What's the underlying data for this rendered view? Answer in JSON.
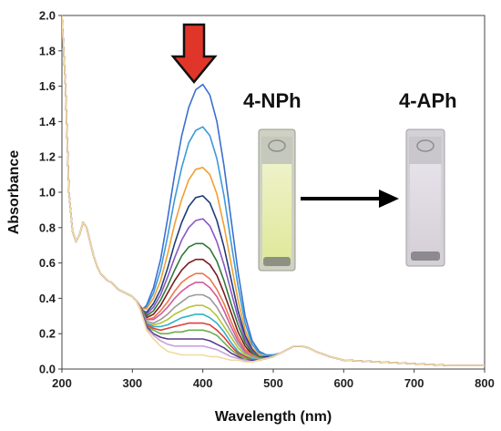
{
  "chart_data": {
    "type": "line",
    "xlabel": "Wavelength (nm)",
    "ylabel": "Absorbance",
    "xlim": [
      200,
      800
    ],
    "ylim": [
      0,
      2.0
    ],
    "x_ticks": [
      200,
      300,
      400,
      500,
      600,
      700,
      800
    ],
    "y_ticks": [
      0.0,
      0.2,
      0.4,
      0.6,
      0.8,
      1.0,
      1.2,
      1.4,
      1.6,
      1.8,
      2.0
    ],
    "grid": false,
    "legend": "none",
    "annotations": {
      "left_label": "4-NPh",
      "right_label": "4-APh",
      "down_arrow_color": "#e0362a",
      "transition_arrow_color": "#000000"
    },
    "x": [
      200,
      205,
      210,
      215,
      220,
      225,
      230,
      235,
      240,
      245,
      250,
      255,
      260,
      265,
      270,
      275,
      280,
      285,
      290,
      295,
      300,
      305,
      310,
      315,
      320,
      330,
      340,
      350,
      360,
      370,
      380,
      390,
      400,
      410,
      420,
      430,
      440,
      450,
      460,
      470,
      480,
      490,
      500,
      510,
      520,
      530,
      540,
      550,
      560,
      580,
      600,
      650,
      700,
      750,
      800
    ],
    "series": [
      {
        "color": "#3a6fd1",
        "values": [
          2.0,
          1.6,
          1.0,
          0.78,
          0.72,
          0.76,
          0.83,
          0.8,
          0.72,
          0.64,
          0.58,
          0.54,
          0.52,
          0.5,
          0.49,
          0.47,
          0.45,
          0.44,
          0.43,
          0.42,
          0.41,
          0.39,
          0.36,
          0.34,
          0.36,
          0.46,
          0.62,
          0.85,
          1.1,
          1.32,
          1.48,
          1.58,
          1.61,
          1.55,
          1.4,
          1.15,
          0.85,
          0.55,
          0.3,
          0.16,
          0.1,
          0.08,
          0.08,
          0.09,
          0.11,
          0.13,
          0.13,
          0.12,
          0.1,
          0.07,
          0.05,
          0.04,
          0.03,
          0.02,
          0.02
        ]
      },
      {
        "color": "#3d9ad8",
        "values": [
          2.0,
          1.6,
          1.0,
          0.78,
          0.72,
          0.76,
          0.83,
          0.8,
          0.72,
          0.64,
          0.58,
          0.54,
          0.52,
          0.5,
          0.49,
          0.47,
          0.45,
          0.44,
          0.43,
          0.42,
          0.41,
          0.39,
          0.36,
          0.34,
          0.35,
          0.43,
          0.56,
          0.75,
          0.96,
          1.14,
          1.28,
          1.35,
          1.37,
          1.32,
          1.19,
          0.98,
          0.72,
          0.47,
          0.26,
          0.14,
          0.09,
          0.08,
          0.08,
          0.09,
          0.11,
          0.13,
          0.13,
          0.12,
          0.1,
          0.07,
          0.05,
          0.04,
          0.03,
          0.02,
          0.02
        ]
      },
      {
        "color": "#f0a030",
        "values": [
          2.0,
          1.6,
          1.0,
          0.78,
          0.72,
          0.76,
          0.83,
          0.8,
          0.72,
          0.64,
          0.58,
          0.54,
          0.52,
          0.5,
          0.49,
          0.47,
          0.45,
          0.44,
          0.43,
          0.42,
          0.41,
          0.39,
          0.36,
          0.34,
          0.34,
          0.4,
          0.5,
          0.65,
          0.82,
          0.96,
          1.07,
          1.13,
          1.14,
          1.1,
          0.99,
          0.81,
          0.6,
          0.39,
          0.22,
          0.12,
          0.08,
          0.07,
          0.07,
          0.09,
          0.11,
          0.13,
          0.13,
          0.12,
          0.1,
          0.07,
          0.05,
          0.04,
          0.03,
          0.02,
          0.02
        ]
      },
      {
        "color": "#1f3c78",
        "values": [
          2.0,
          1.6,
          1.0,
          0.78,
          0.72,
          0.76,
          0.83,
          0.8,
          0.72,
          0.64,
          0.58,
          0.54,
          0.52,
          0.5,
          0.49,
          0.47,
          0.45,
          0.44,
          0.43,
          0.42,
          0.41,
          0.39,
          0.36,
          0.33,
          0.32,
          0.37,
          0.45,
          0.57,
          0.71,
          0.83,
          0.92,
          0.97,
          0.98,
          0.94,
          0.84,
          0.69,
          0.51,
          0.33,
          0.19,
          0.11,
          0.07,
          0.07,
          0.07,
          0.09,
          0.11,
          0.13,
          0.13,
          0.12,
          0.1,
          0.07,
          0.05,
          0.04,
          0.03,
          0.02,
          0.02
        ]
      },
      {
        "color": "#8a57c2",
        "values": [
          2.0,
          1.6,
          1.0,
          0.78,
          0.72,
          0.76,
          0.83,
          0.8,
          0.72,
          0.64,
          0.58,
          0.54,
          0.52,
          0.5,
          0.49,
          0.47,
          0.45,
          0.44,
          0.43,
          0.42,
          0.41,
          0.39,
          0.36,
          0.33,
          0.31,
          0.35,
          0.42,
          0.52,
          0.63,
          0.73,
          0.8,
          0.84,
          0.85,
          0.81,
          0.72,
          0.59,
          0.44,
          0.29,
          0.17,
          0.1,
          0.07,
          0.06,
          0.07,
          0.09,
          0.11,
          0.13,
          0.13,
          0.12,
          0.1,
          0.07,
          0.05,
          0.04,
          0.03,
          0.02,
          0.02
        ]
      },
      {
        "color": "#2f7a3a",
        "values": [
          2.0,
          1.6,
          1.0,
          0.78,
          0.72,
          0.76,
          0.83,
          0.8,
          0.72,
          0.64,
          0.58,
          0.54,
          0.52,
          0.5,
          0.49,
          0.47,
          0.45,
          0.44,
          0.43,
          0.42,
          0.41,
          0.39,
          0.36,
          0.33,
          0.3,
          0.33,
          0.39,
          0.47,
          0.56,
          0.64,
          0.69,
          0.71,
          0.71,
          0.68,
          0.61,
          0.5,
          0.37,
          0.25,
          0.15,
          0.09,
          0.07,
          0.06,
          0.07,
          0.09,
          0.11,
          0.13,
          0.13,
          0.12,
          0.1,
          0.07,
          0.05,
          0.04,
          0.03,
          0.02,
          0.02
        ]
      },
      {
        "color": "#7a1c22",
        "values": [
          2.0,
          1.6,
          1.0,
          0.78,
          0.72,
          0.76,
          0.83,
          0.8,
          0.72,
          0.64,
          0.58,
          0.54,
          0.52,
          0.5,
          0.49,
          0.47,
          0.45,
          0.44,
          0.43,
          0.42,
          0.41,
          0.39,
          0.36,
          0.32,
          0.29,
          0.31,
          0.36,
          0.43,
          0.5,
          0.56,
          0.6,
          0.62,
          0.62,
          0.59,
          0.53,
          0.43,
          0.32,
          0.21,
          0.13,
          0.08,
          0.06,
          0.06,
          0.07,
          0.09,
          0.11,
          0.13,
          0.13,
          0.12,
          0.1,
          0.07,
          0.05,
          0.04,
          0.03,
          0.02,
          0.02
        ]
      },
      {
        "color": "#e8784a",
        "values": [
          2.0,
          1.6,
          1.0,
          0.78,
          0.72,
          0.76,
          0.83,
          0.8,
          0.72,
          0.64,
          0.58,
          0.54,
          0.52,
          0.5,
          0.49,
          0.47,
          0.45,
          0.44,
          0.43,
          0.42,
          0.41,
          0.39,
          0.36,
          0.32,
          0.28,
          0.29,
          0.33,
          0.38,
          0.44,
          0.49,
          0.52,
          0.54,
          0.54,
          0.51,
          0.45,
          0.37,
          0.27,
          0.18,
          0.11,
          0.08,
          0.06,
          0.06,
          0.07,
          0.09,
          0.11,
          0.13,
          0.13,
          0.12,
          0.1,
          0.07,
          0.05,
          0.04,
          0.03,
          0.02,
          0.02
        ]
      },
      {
        "color": "#d25a9a",
        "values": [
          2.0,
          1.6,
          1.0,
          0.78,
          0.72,
          0.76,
          0.83,
          0.8,
          0.72,
          0.64,
          0.58,
          0.54,
          0.52,
          0.5,
          0.49,
          0.47,
          0.45,
          0.44,
          0.43,
          0.42,
          0.41,
          0.39,
          0.36,
          0.32,
          0.28,
          0.28,
          0.31,
          0.35,
          0.4,
          0.44,
          0.47,
          0.49,
          0.49,
          0.46,
          0.41,
          0.33,
          0.24,
          0.16,
          0.1,
          0.07,
          0.06,
          0.06,
          0.07,
          0.09,
          0.11,
          0.13,
          0.13,
          0.12,
          0.1,
          0.07,
          0.05,
          0.04,
          0.03,
          0.02,
          0.02
        ]
      },
      {
        "color": "#9a9a9a",
        "values": [
          2.0,
          1.6,
          1.0,
          0.78,
          0.72,
          0.76,
          0.83,
          0.8,
          0.72,
          0.64,
          0.58,
          0.54,
          0.52,
          0.5,
          0.49,
          0.47,
          0.45,
          0.44,
          0.43,
          0.42,
          0.41,
          0.39,
          0.35,
          0.31,
          0.27,
          0.26,
          0.28,
          0.31,
          0.35,
          0.38,
          0.41,
          0.42,
          0.42,
          0.4,
          0.35,
          0.28,
          0.21,
          0.14,
          0.09,
          0.07,
          0.06,
          0.06,
          0.07,
          0.09,
          0.11,
          0.13,
          0.13,
          0.12,
          0.1,
          0.07,
          0.05,
          0.04,
          0.03,
          0.02,
          0.02
        ]
      },
      {
        "color": "#b8c23a",
        "values": [
          2.0,
          1.6,
          1.0,
          0.78,
          0.72,
          0.76,
          0.83,
          0.8,
          0.72,
          0.64,
          0.58,
          0.54,
          0.52,
          0.5,
          0.49,
          0.47,
          0.45,
          0.44,
          0.43,
          0.42,
          0.41,
          0.39,
          0.35,
          0.31,
          0.26,
          0.25,
          0.26,
          0.28,
          0.31,
          0.33,
          0.35,
          0.36,
          0.36,
          0.34,
          0.3,
          0.24,
          0.18,
          0.12,
          0.08,
          0.06,
          0.05,
          0.06,
          0.07,
          0.09,
          0.11,
          0.13,
          0.13,
          0.12,
          0.1,
          0.07,
          0.05,
          0.04,
          0.03,
          0.02,
          0.02
        ]
      },
      {
        "color": "#2fb3c6",
        "values": [
          2.0,
          1.6,
          1.0,
          0.78,
          0.72,
          0.76,
          0.83,
          0.8,
          0.72,
          0.64,
          0.58,
          0.54,
          0.52,
          0.5,
          0.49,
          0.47,
          0.45,
          0.44,
          0.43,
          0.42,
          0.41,
          0.39,
          0.35,
          0.31,
          0.26,
          0.24,
          0.24,
          0.25,
          0.27,
          0.29,
          0.3,
          0.31,
          0.31,
          0.29,
          0.26,
          0.21,
          0.15,
          0.1,
          0.07,
          0.06,
          0.05,
          0.06,
          0.07,
          0.09,
          0.11,
          0.13,
          0.13,
          0.12,
          0.1,
          0.07,
          0.05,
          0.04,
          0.03,
          0.02,
          0.02
        ]
      },
      {
        "color": "#e03c3c",
        "values": [
          2.0,
          1.6,
          1.0,
          0.78,
          0.72,
          0.76,
          0.83,
          0.8,
          0.72,
          0.64,
          0.58,
          0.54,
          0.52,
          0.5,
          0.49,
          0.47,
          0.45,
          0.44,
          0.43,
          0.42,
          0.41,
          0.39,
          0.35,
          0.3,
          0.25,
          0.23,
          0.22,
          0.23,
          0.24,
          0.25,
          0.26,
          0.26,
          0.26,
          0.25,
          0.22,
          0.18,
          0.13,
          0.09,
          0.07,
          0.05,
          0.05,
          0.06,
          0.07,
          0.09,
          0.11,
          0.13,
          0.13,
          0.12,
          0.1,
          0.07,
          0.05,
          0.04,
          0.03,
          0.02,
          0.02
        ]
      },
      {
        "color": "#6ab04c",
        "values": [
          2.0,
          1.6,
          1.0,
          0.78,
          0.72,
          0.76,
          0.83,
          0.8,
          0.72,
          0.64,
          0.58,
          0.54,
          0.52,
          0.5,
          0.49,
          0.47,
          0.45,
          0.44,
          0.43,
          0.42,
          0.41,
          0.39,
          0.35,
          0.3,
          0.24,
          0.22,
          0.2,
          0.2,
          0.21,
          0.21,
          0.22,
          0.22,
          0.22,
          0.21,
          0.19,
          0.15,
          0.11,
          0.08,
          0.06,
          0.05,
          0.05,
          0.06,
          0.07,
          0.09,
          0.11,
          0.13,
          0.13,
          0.12,
          0.1,
          0.07,
          0.05,
          0.04,
          0.03,
          0.02,
          0.02
        ]
      },
      {
        "color": "#5b3d8c",
        "values": [
          2.0,
          1.6,
          1.0,
          0.78,
          0.72,
          0.76,
          0.83,
          0.8,
          0.72,
          0.64,
          0.58,
          0.54,
          0.52,
          0.5,
          0.49,
          0.47,
          0.45,
          0.44,
          0.43,
          0.42,
          0.41,
          0.39,
          0.35,
          0.3,
          0.24,
          0.2,
          0.18,
          0.17,
          0.17,
          0.17,
          0.17,
          0.17,
          0.17,
          0.16,
          0.14,
          0.12,
          0.09,
          0.07,
          0.05,
          0.05,
          0.05,
          0.06,
          0.07,
          0.09,
          0.11,
          0.13,
          0.13,
          0.12,
          0.1,
          0.07,
          0.05,
          0.04,
          0.03,
          0.02,
          0.02
        ]
      },
      {
        "color": "#c9a3d8",
        "values": [
          2.0,
          1.6,
          1.0,
          0.78,
          0.72,
          0.76,
          0.83,
          0.8,
          0.72,
          0.64,
          0.58,
          0.54,
          0.52,
          0.5,
          0.49,
          0.47,
          0.45,
          0.44,
          0.43,
          0.42,
          0.41,
          0.39,
          0.35,
          0.29,
          0.23,
          0.19,
          0.16,
          0.14,
          0.13,
          0.13,
          0.13,
          0.13,
          0.13,
          0.12,
          0.11,
          0.09,
          0.07,
          0.06,
          0.05,
          0.04,
          0.05,
          0.06,
          0.07,
          0.09,
          0.11,
          0.13,
          0.13,
          0.12,
          0.1,
          0.07,
          0.05,
          0.04,
          0.03,
          0.02,
          0.02
        ]
      },
      {
        "color": "#f2d9a0",
        "values": [
          2.0,
          1.6,
          1.0,
          0.78,
          0.72,
          0.76,
          0.83,
          0.8,
          0.72,
          0.64,
          0.58,
          0.54,
          0.52,
          0.5,
          0.49,
          0.47,
          0.45,
          0.44,
          0.43,
          0.42,
          0.41,
          0.39,
          0.35,
          0.29,
          0.22,
          0.17,
          0.13,
          0.1,
          0.09,
          0.08,
          0.08,
          0.08,
          0.08,
          0.07,
          0.07,
          0.06,
          0.05,
          0.05,
          0.04,
          0.04,
          0.05,
          0.06,
          0.07,
          0.09,
          0.11,
          0.13,
          0.13,
          0.12,
          0.1,
          0.07,
          0.05,
          0.04,
          0.03,
          0.02,
          0.02
        ]
      }
    ]
  }
}
